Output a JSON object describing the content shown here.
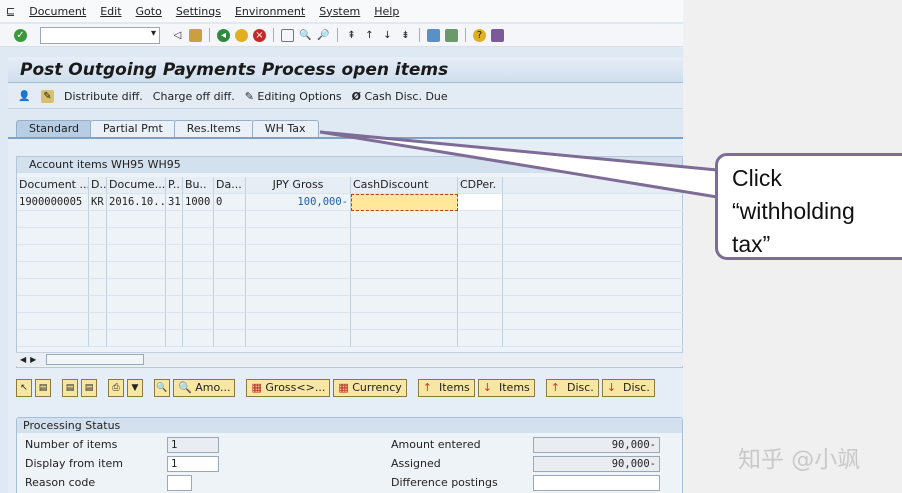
{
  "menu": [
    "Document",
    "Edit",
    "Goto",
    "Settings",
    "Environment",
    "System",
    "Help"
  ],
  "title": "Post Outgoing Payments Process open items",
  "app_toolbar": {
    "distribute": "Distribute diff.",
    "charge_off": "Charge off diff.",
    "editing": "Editing Options",
    "cash_disc": "Cash Disc. Due"
  },
  "tabs": [
    "Standard",
    "Partial Pmt",
    "Res.Items",
    "WH Tax"
  ],
  "active_tab": "Standard",
  "table": {
    "caption": "Account items WH95 WH95",
    "headers": [
      "Document ...",
      "D..",
      "Docume...",
      "P..",
      "Bu..",
      "Da...",
      "JPY Gross",
      "CashDiscount",
      "CDPer."
    ],
    "rows": [
      [
        "1900000005",
        "KR",
        "2016.10..",
        "31",
        "1000",
        "0",
        "100,000-",
        "",
        ""
      ]
    ]
  },
  "buttons": {
    "amo": "Amo...",
    "gross": "Gross<>...",
    "currency": "Currency",
    "items_asc": "Items",
    "items_desc": "Items",
    "disc_asc": "Disc.",
    "disc_desc": "Disc."
  },
  "processing": {
    "caption": "Processing Status",
    "number_of_items_label": "Number of items",
    "number_of_items": "1",
    "display_from_label": "Display from item",
    "display_from": "1",
    "reason_code_label": "Reason code",
    "reason_code": "",
    "amount_entered_label": "Amount entered",
    "amount_entered": "90,000-",
    "assigned_label": "Assigned",
    "assigned": "90,000-",
    "difference_label": "Difference postings",
    "difference": ""
  },
  "callout": {
    "line1": "Click",
    "line2": "“withholding",
    "line3": "tax”"
  },
  "watermark": "知乎 @小飒"
}
